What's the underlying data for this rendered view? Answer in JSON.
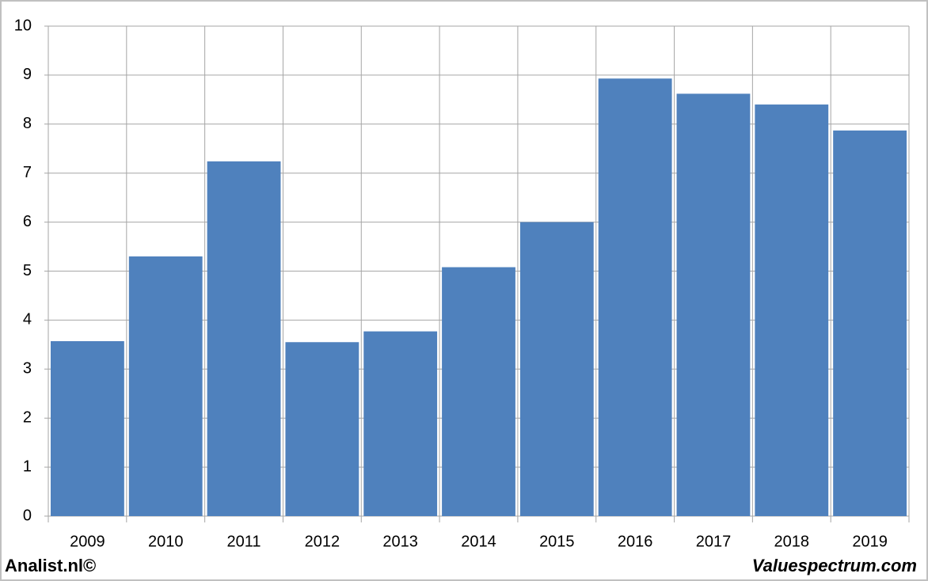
{
  "chart_data": {
    "type": "bar",
    "categories": [
      "2009",
      "2010",
      "2011",
      "2012",
      "2013",
      "2014",
      "2015",
      "2016",
      "2017",
      "2018",
      "2019"
    ],
    "values": [
      3.57,
      5.3,
      7.24,
      3.55,
      3.77,
      5.08,
      6.0,
      8.93,
      8.62,
      8.4,
      7.87
    ],
    "color": "#4f81bd",
    "ylim": [
      0,
      10
    ],
    "yticks": [
      0,
      1,
      2,
      3,
      4,
      5,
      6,
      7,
      8,
      9,
      10
    ],
    "grid": true,
    "annotations": [
      "Analist.nl©",
      "Valuespectrum.com"
    ]
  }
}
